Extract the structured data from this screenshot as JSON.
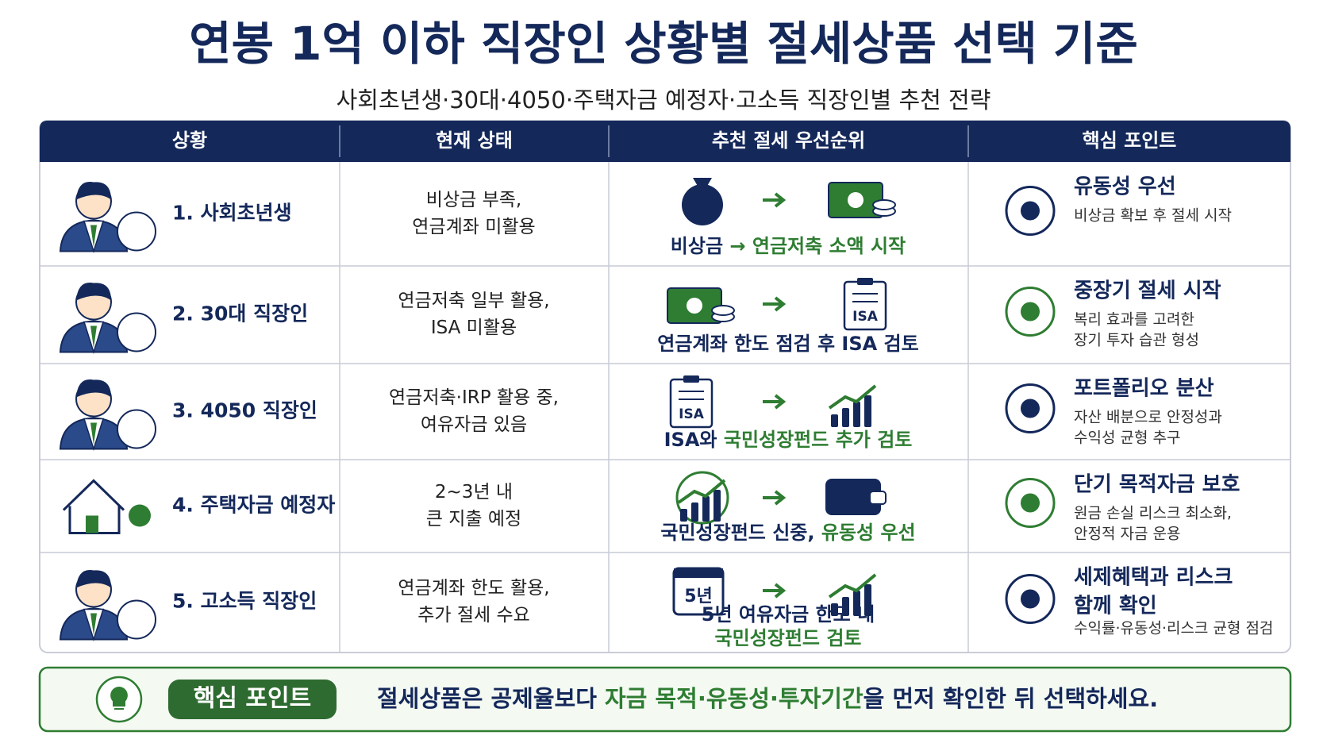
{
  "title": "연봉 1억 이하 직장인 상황별 절세상품 선택 기준",
  "subtitle": "사회초년생·30대·4050·주택자금 예정자·고소득 직장인별 추천 전략",
  "table": {
    "headers": [
      "상황",
      "현재 상태",
      "추천 절세 우선순위",
      "핵심 포인트"
    ],
    "rows": [
      {
        "situation": "1. 사회초년생",
        "status": [
          "비상금 부족,",
          "연금계좌 미활용"
        ],
        "recommendation": [
          [
            {
              "text": "비상금",
              "color": "#14285a"
            },
            {
              "text": " → ",
              "color": "#2e7d32"
            },
            {
              "text": "연금저축 소액 시작",
              "color": "#2e7d32"
            }
          ]
        ],
        "point_title": [
          "유동성 우선"
        ],
        "point_desc": [
          "비상금 확보 후 절세 시작"
        ]
      },
      {
        "situation": "2. 30대 직장인",
        "status": [
          "연금저축 일부 활용,",
          "ISA 미활용"
        ],
        "icon_texts": [
          "ISA"
        ],
        "recommendation": [
          [
            {
              "text": "연금계좌 한도 점검 후 ISA 검토",
              "color": "#14285a"
            }
          ]
        ],
        "point_title": [
          "중장기 절세 시작"
        ],
        "point_desc": [
          "복리 효과를 고려한",
          "장기 투자 습관 형성"
        ]
      },
      {
        "situation": "3. 4050 직장인",
        "status": [
          "연금저축·IRP 활용 중,",
          "여유자금 있음"
        ],
        "icon_texts": [
          "ISA"
        ],
        "recommendation": [
          [
            {
              "text": "ISA와 ",
              "color": "#14285a"
            },
            {
              "text": "국민성장펀드 추가 검토",
              "color": "#2e7d32"
            }
          ]
        ],
        "point_title": [
          "포트폴리오 분산"
        ],
        "point_desc": [
          "자산 배분으로 안정성과",
          "수익성 균형 추구"
        ]
      },
      {
        "situation": "4. 주택자금 예정자",
        "status": [
          "2~3년 내",
          "큰 지출 예정"
        ],
        "recommendation": [
          [
            {
              "text": "국민성장펀드 신중,",
              "color": "#14285a"
            },
            {
              "text": " 유동성 우선",
              "color": "#2e7d32"
            }
          ]
        ],
        "point_title": [
          "단기 목적자금 보호"
        ],
        "point_desc": [
          "원금 손실 리스크 최소화,",
          "안정적 자금 운용"
        ]
      },
      {
        "situation": "5. 고소득 직장인",
        "status": [
          "연금계좌 한도 활용,",
          "추가 절세 수요"
        ],
        "icon_texts": [
          "5년"
        ],
        "recommendation": [
          [
            {
              "text": "5년 여유자금 한도 내",
              "color": "#14285a"
            }
          ],
          [
            {
              "text": "국민성장펀드 검토",
              "color": "#2e7d32"
            }
          ]
        ],
        "point_title": [
          "세제혜택과 리스크",
          "함께 확인"
        ],
        "point_desc": [
          "수익률·유동성·리스크 균형 점검"
        ]
      }
    ]
  },
  "footer": {
    "label": "핵심 포인트",
    "message": [
      {
        "text": "절세상품은 공제율보다 ",
        "color": "#14285a"
      },
      {
        "text": "자금 목적·유동성·투자기간",
        "color": "#2e7d32"
      },
      {
        "text": "을 먼저 확인한 뒤 선택하세요.",
        "color": "#14285a"
      }
    ]
  }
}
